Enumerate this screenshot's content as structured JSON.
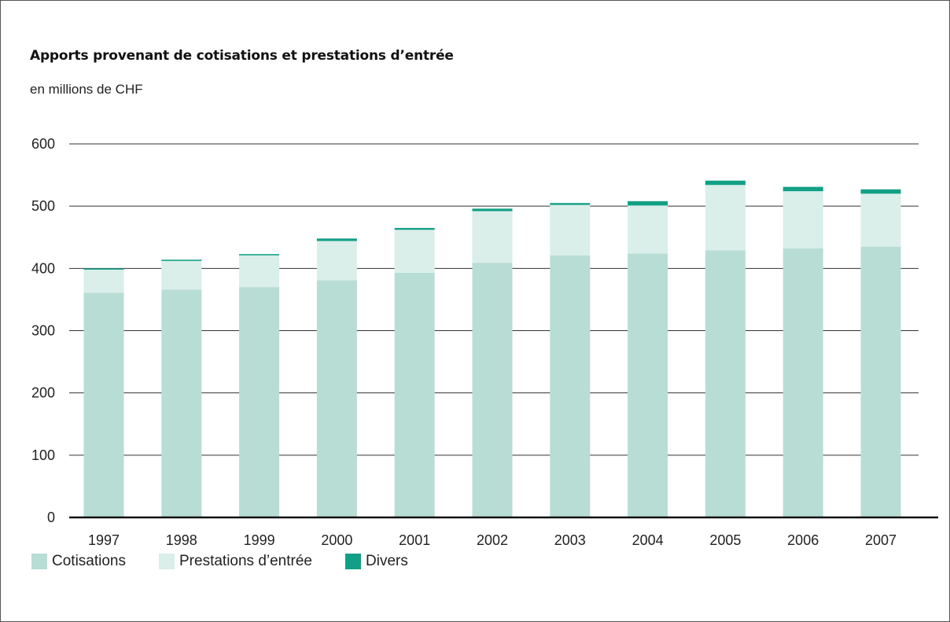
{
  "title": "Apports provenant de cotisations et prestations d’entrée",
  "subtitle": "en millions de CHF",
  "colors": {
    "cotisations": "#b8ddd5",
    "prestations": "#daeeea",
    "divers": "#11a085",
    "grid": "#333333"
  },
  "chart_data": {
    "type": "bar",
    "stacked": true,
    "title": "Apports provenant de cotisations et prestations d’entrée",
    "ylabel": "en millions de CHF",
    "xlabel": "",
    "ylim": [
      0,
      600
    ],
    "yticks": [
      0,
      100,
      200,
      300,
      400,
      500,
      600
    ],
    "grid": true,
    "legend_position": "bottom-left",
    "categories": [
      "1997",
      "1998",
      "1999",
      "2000",
      "2001",
      "2002",
      "2003",
      "2004",
      "2005",
      "2006",
      "2007"
    ],
    "series": [
      {
        "name": "Cotisations",
        "values": [
          361,
          366,
          370,
          381,
          393,
          409,
          421,
          424,
          429,
          432,
          435
        ]
      },
      {
        "name": "Prestations d’entrée",
        "values": [
          37,
          46,
          51,
          63,
          69,
          83,
          81,
          77,
          105,
          92,
          85
        ]
      },
      {
        "name": "Divers",
        "values": [
          2,
          2,
          2,
          4,
          3,
          4,
          3,
          7,
          7,
          7,
          7
        ]
      }
    ]
  }
}
